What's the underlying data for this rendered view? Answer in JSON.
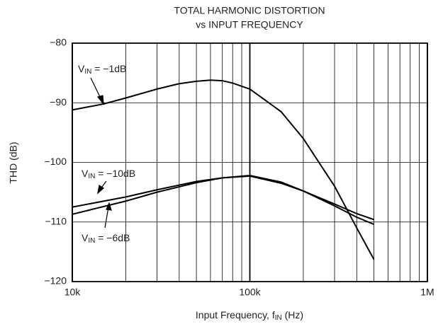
{
  "chart_data": {
    "type": "line",
    "title": "TOTAL HARMONIC DISTORTION",
    "subtitle": "vs INPUT FREQUENCY",
    "xlabel": "Input Frequency, fIN (Hz)",
    "ylabel": "THD (dB)",
    "xscale": "log",
    "xlim": [
      10000,
      1000000
    ],
    "ylim": [
      -120,
      -80
    ],
    "xticks": [
      {
        "value": 10000,
        "label": "10k"
      },
      {
        "value": 100000,
        "label": "100k"
      },
      {
        "value": 1000000,
        "label": "1M"
      }
    ],
    "xminorticks": [
      20000,
      30000,
      40000,
      50000,
      60000,
      70000,
      80000,
      90000,
      200000,
      300000,
      400000,
      500000,
      600000,
      700000,
      800000,
      900000
    ],
    "yticks": [
      {
        "value": -120,
        "label": "−120"
      },
      {
        "value": -110,
        "label": "−110"
      },
      {
        "value": -100,
        "label": "−100"
      },
      {
        "value": -90,
        "label": "−90"
      },
      {
        "value": -80,
        "label": "−80"
      }
    ],
    "grid": true,
    "series": [
      {
        "name": "VIN = −1dB",
        "color": "#000000",
        "x": [
          10000,
          15000,
          20000,
          30000,
          40000,
          50000,
          60000,
          70000,
          80000,
          100000,
          150000,
          200000,
          300000,
          400000,
          500000
        ],
        "values": [
          -91.2,
          -90.2,
          -89.2,
          -87.7,
          -86.8,
          -86.4,
          -86.2,
          -86.3,
          -86.7,
          -87.7,
          -91.5,
          -96,
          -104,
          -111,
          -116.3
        ]
      },
      {
        "name": "VIN = −10dB",
        "color": "#000000",
        "x": [
          10000,
          20000,
          30000,
          50000,
          70000,
          100000,
          150000,
          200000,
          300000,
          400000,
          500000
        ],
        "values": [
          -107.5,
          -105.8,
          -104.6,
          -103.2,
          -102.6,
          -102.3,
          -103.5,
          -104.8,
          -107,
          -108.6,
          -109.6
        ]
      },
      {
        "name": "VIN = −6dB",
        "color": "#000000",
        "x": [
          10000,
          20000,
          30000,
          50000,
          70000,
          100000,
          150000,
          200000,
          300000,
          400000,
          500000
        ],
        "values": [
          -108.7,
          -106.5,
          -105,
          -103.4,
          -102.6,
          -102.2,
          -103.3,
          -104.8,
          -107.3,
          -109.2,
          -110.4
        ]
      }
    ]
  }
}
